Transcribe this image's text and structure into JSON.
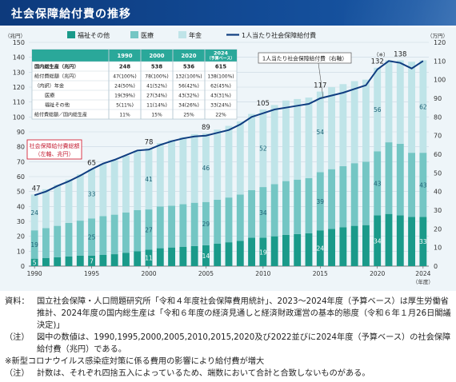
{
  "title": "社会保障給付費の推移",
  "colors": {
    "welfare": "#1a9a8a",
    "medical": "#74c6c4",
    "pension": "#bfe4e8",
    "line": "#0f3d80",
    "title_bg": "#0d3a7c",
    "callout_border": "#d6263a",
    "panel_bg": "#eef5f9"
  },
  "chart_data": {
    "type": "bar",
    "left_unit": "（兆円）",
    "right_unit": "（万円）",
    "year_label": "（年度）",
    "ylim": [
      0,
      150
    ],
    "y2lim": [
      0,
      120
    ],
    "yticks": [
      0,
      10,
      20,
      30,
      40,
      50,
      60,
      70,
      80,
      90,
      100,
      110,
      120,
      130,
      140,
      150
    ],
    "y2ticks": [
      0,
      10,
      20,
      30,
      40,
      50,
      60,
      70,
      80,
      90,
      100,
      110,
      120
    ],
    "x_ticks": [
      1990,
      1995,
      2000,
      2005,
      2010,
      2015,
      2020,
      2024
    ],
    "categories": [
      1990,
      1991,
      1992,
      1993,
      1994,
      1995,
      1996,
      1997,
      1998,
      1999,
      2000,
      2001,
      2002,
      2003,
      2004,
      2005,
      2006,
      2007,
      2008,
      2009,
      2010,
      2011,
      2012,
      2013,
      2014,
      2015,
      2016,
      2017,
      2018,
      2019,
      2020,
      2021,
      2022,
      2023,
      2024
    ],
    "legend": [
      "福祉その他",
      "医療",
      "年金",
      "1人当たり社会保障給付費"
    ],
    "series": [
      {
        "name": "福祉その他",
        "values": [
          5,
          5.5,
          6,
          6.5,
          7,
          7,
          7.5,
          8,
          9,
          10,
          11,
          12,
          12.5,
          13,
          13.5,
          14,
          15,
          16,
          17,
          19,
          19,
          20,
          21,
          21.5,
          22,
          24,
          25,
          26,
          27,
          27.5,
          34,
          35,
          34,
          33,
          33
        ]
      },
      {
        "name": "医療",
        "values": [
          19,
          20,
          21,
          22.5,
          23.5,
          25,
          26,
          26.5,
          27,
          27.5,
          27,
          28,
          28,
          28.5,
          29,
          29,
          29.5,
          30,
          31,
          32,
          34,
          35,
          36,
          36.5,
          37,
          39,
          40,
          41,
          42,
          42.5,
          43,
          48,
          48,
          43,
          43
        ]
      },
      {
        "name": "年金",
        "values": [
          24,
          26,
          27.5,
          29,
          31,
          33,
          35,
          36.5,
          38,
          40,
          41,
          42.5,
          44,
          45,
          46,
          46,
          47,
          48,
          49,
          51,
          52,
          53,
          54,
          54,
          54,
          54,
          55,
          55,
          55,
          55,
          56,
          55,
          56,
          61,
          62
        ]
      },
      {
        "name": "1人当たり社会保障給付費",
        "values": [
          38,
          40,
          43,
          45.5,
          48.5,
          52,
          55,
          57,
          59.5,
          62,
          62.5,
          65,
          67,
          68.5,
          69.5,
          70,
          71.5,
          73,
          76,
          80,
          82,
          84,
          85,
          86,
          87,
          90,
          91.5,
          93,
          95,
          97,
          105.5,
          110,
          109,
          106,
          110
        ]
      }
    ],
    "bar_totals": [
      {
        "year": 1990,
        "value": "47"
      },
      {
        "year": 1995,
        "value": "65"
      },
      {
        "year": 2000,
        "value": "78"
      },
      {
        "year": 2005,
        "value": "89"
      },
      {
        "year": 2010,
        "value": "105"
      },
      {
        "year": 2015,
        "value": "117"
      },
      {
        "year": 2020,
        "value": "132"
      },
      {
        "year": 2022,
        "value": "138"
      }
    ],
    "segment_labels": {
      "welfare": [
        {
          "year": 1990,
          "value": "5"
        },
        {
          "year": 1995,
          "value": "7"
        },
        {
          "year": 2000,
          "value": "11"
        },
        {
          "year": 2005,
          "value": "14"
        },
        {
          "year": 2010,
          "value": "19"
        },
        {
          "year": 2015,
          "value": "24"
        },
        {
          "year": 2020,
          "value": "34"
        },
        {
          "year": 2024,
          "value": "33"
        }
      ],
      "medical": [
        {
          "year": 1990,
          "value": "19"
        },
        {
          "year": 1995,
          "value": "25"
        },
        {
          "year": 2000,
          "value": "27"
        },
        {
          "year": 2005,
          "value": "29"
        },
        {
          "year": 2010,
          "value": "34"
        },
        {
          "year": 2015,
          "value": "39"
        },
        {
          "year": 2020,
          "value": "43"
        },
        {
          "year": 2024,
          "value": "43"
        }
      ],
      "pension": [
        {
          "year": 1990,
          "value": "24"
        },
        {
          "year": 1995,
          "value": "33"
        },
        {
          "year": 2000,
          "value": "41"
        },
        {
          "year": 2005,
          "value": "46"
        },
        {
          "year": 2010,
          "value": "52"
        },
        {
          "year": 2015,
          "value": "54"
        },
        {
          "year": 2020,
          "value": "56"
        },
        {
          "year": 2024,
          "value": "62"
        }
      ]
    },
    "covid_mark": "（※）",
    "callout_total": "社会保障給付費総額\n（左軸、兆円）",
    "callout_per_capita": "1人当たり社会保障給付費（右軸）",
    "table": {
      "headers": [
        "",
        "1990",
        "2000",
        "2020",
        "2024\n（予算ベース）"
      ],
      "rows": [
        [
          "国内総生産（兆円）",
          "248",
          "538",
          "536",
          "615"
        ],
        [
          "給付費総額（兆円）",
          "47(100%)",
          "78(100%)",
          "132(100%)",
          "138(100%)"
        ],
        [
          "（内訳）年金",
          "24(50%)",
          "41(52%)",
          "56(42%)",
          "62(45%)"
        ],
        [
          "医療",
          "19(39%)",
          "27(34%)",
          "43(32%)",
          "43(31%)"
        ],
        [
          "福祉その他",
          "5(11%)",
          "11(14%)",
          "34(26%)",
          "33(24%)"
        ],
        [
          "給付費総額／国内総生産",
          "11%",
          "15%",
          "25%",
          "22%"
        ]
      ]
    }
  },
  "notes": [
    {
      "label": "資料：",
      "text": "国立社会保障・人口問題研究所「令和４年度社会保障費用統計」、2023～2024年度（予算ベース）は厚生労働省推計、2024年度の国内総生産は「令和６年度の経済見通しと経済財政運営の基本的態度（令和６年１月26日閣議決定)」"
    },
    {
      "label": "（注）",
      "text": "図中の数値は、1990,1995,2000,2005,2010,2015,2020及び2022並びに2024年度（予算ベース）の社会保障給付費（兆円）である。"
    },
    {
      "label": "",
      "text": "※新型コロナウイルス感染症対策に係る費用の影響により給付費が増大"
    },
    {
      "label": "（注）",
      "text": "計数は、それぞれ四捨五入によっているため、端数において合計と合致しないものがある。"
    }
  ]
}
